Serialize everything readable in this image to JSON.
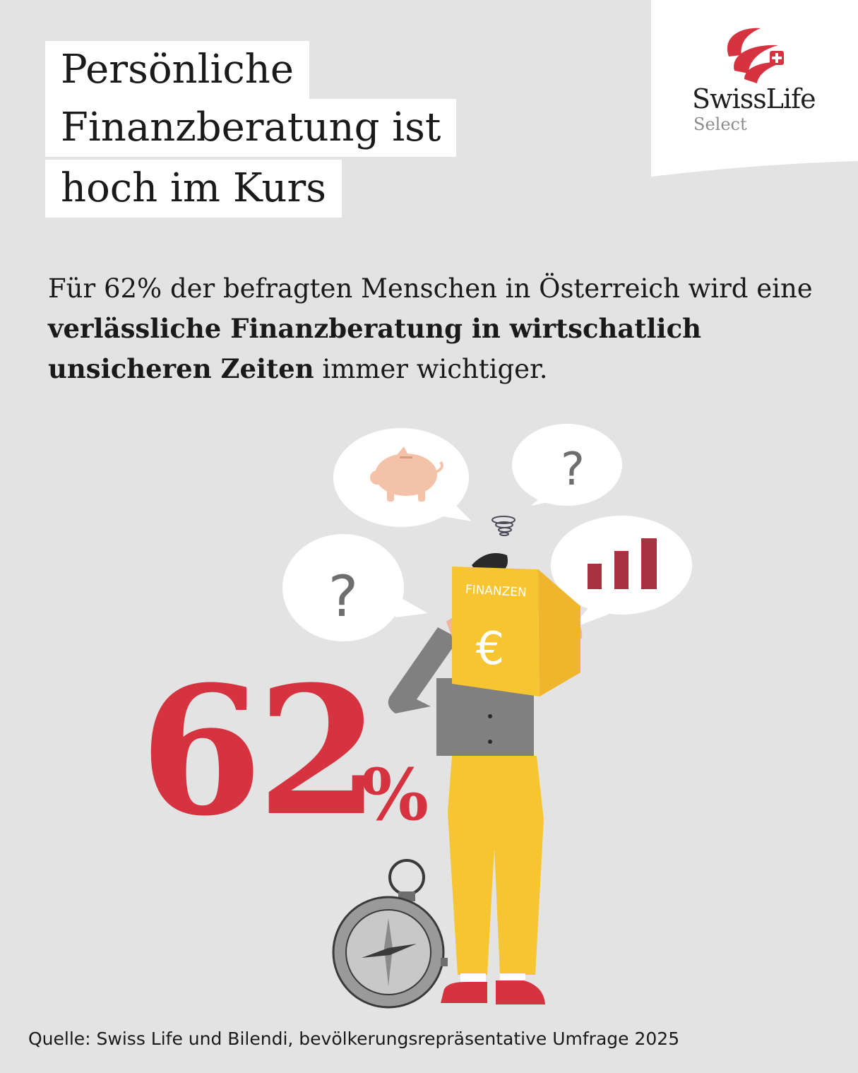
{
  "title": {
    "line1": "Persönliche",
    "line2": "Finanzberatung ist",
    "line3": "hoch im Kurs"
  },
  "logo": {
    "name": "SwissLife",
    "sub": "Select"
  },
  "intro": {
    "part1": "Für 62% der befragten Menschen in Österreich wird eine ",
    "bold": "verlässliche Finanzberatung in wirtschatlich unsicheren Zeiten",
    "part2": " immer wichtiger."
  },
  "stat": {
    "number": "62",
    "unit": "%"
  },
  "illustration": {
    "book_label": "FINANZEN",
    "currency_symbol": "€",
    "question_mark": "?",
    "colors": {
      "accent_red": "#d63341",
      "yellow": "#f7c531",
      "grey": "#808080",
      "bar_red": "#a8323f"
    }
  },
  "source": "Quelle: Swiss Life und Bilendi, bevölkerungsrepräsentative Umfrage 2025"
}
